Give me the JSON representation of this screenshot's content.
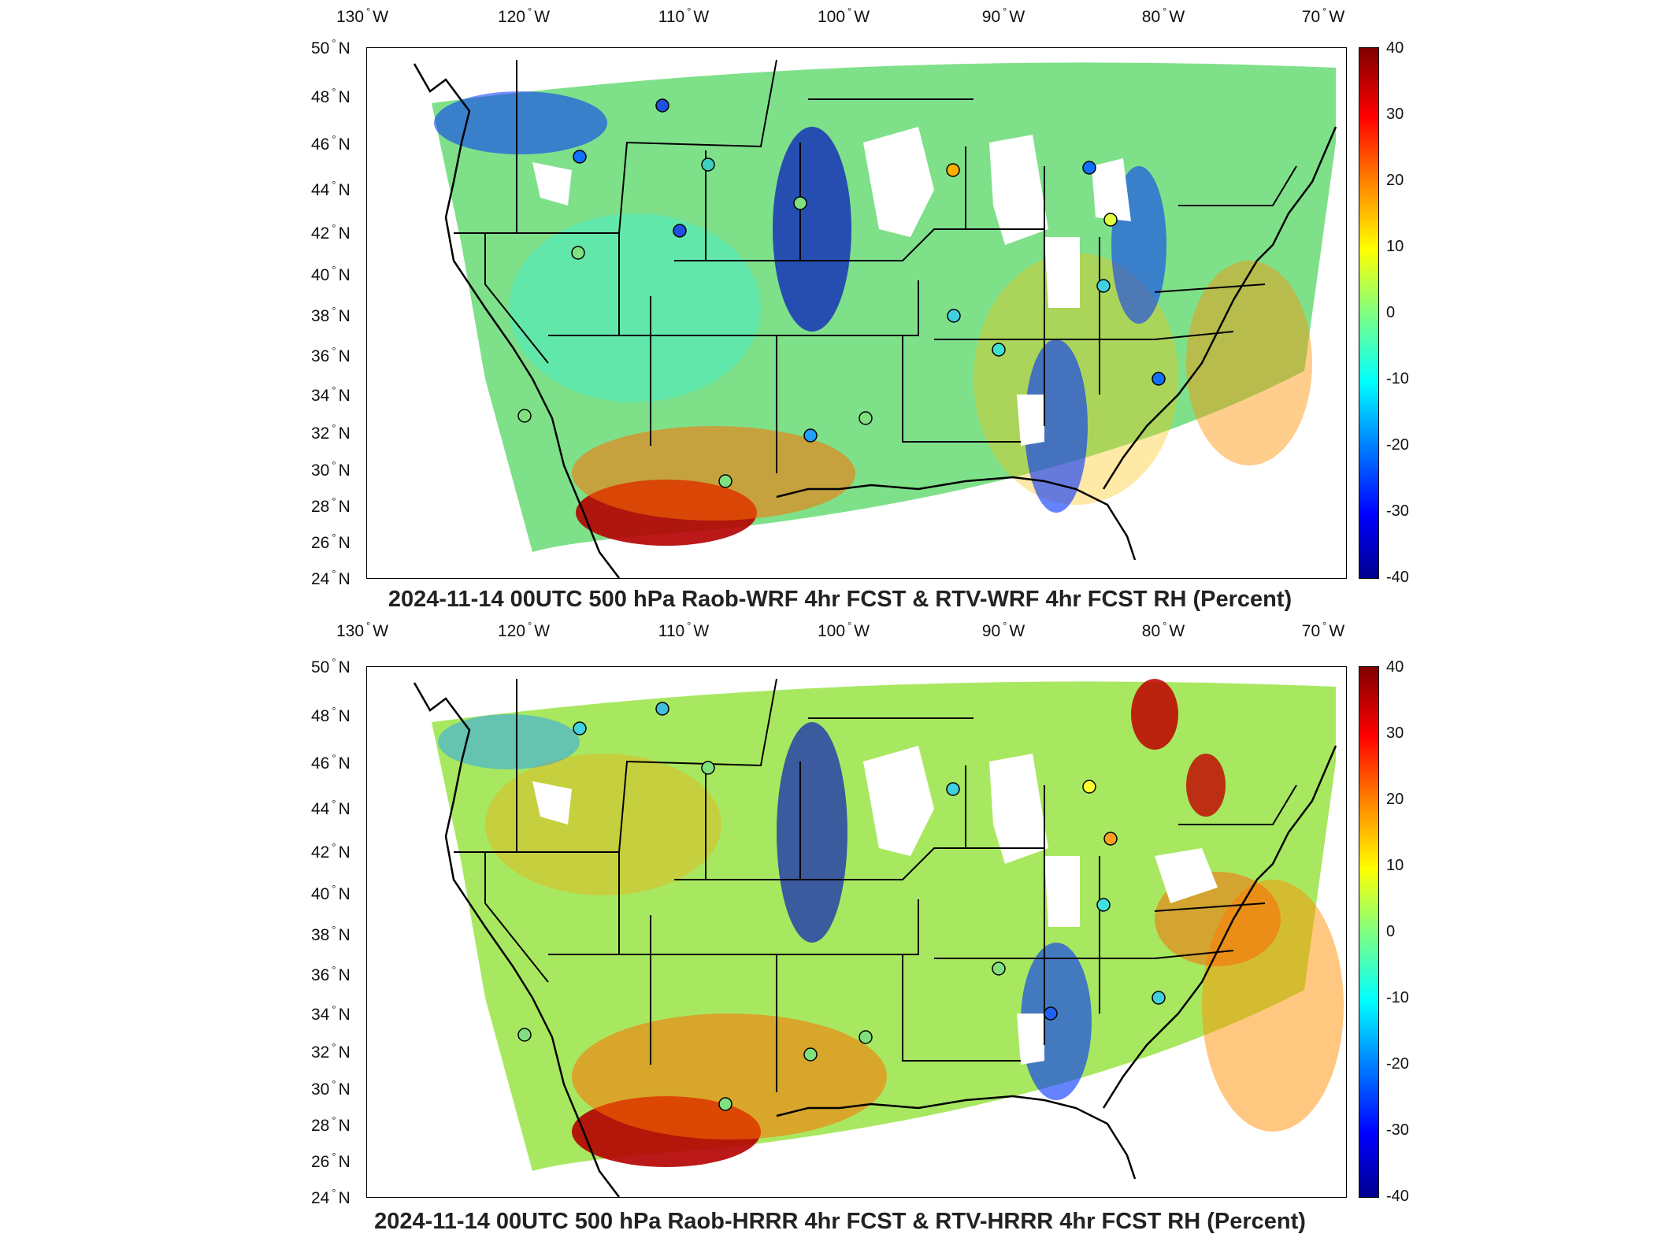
{
  "panels": [
    {
      "title": "2024-11-14 00UTC 500 hPa Raob-WRF 4hr FCST & RTV-WRF 4hr FCST RH (Percent)",
      "lon_labels": [
        "130",
        "120",
        "110",
        "100",
        "90",
        "80",
        "70"
      ],
      "lon_suffix": "W",
      "lat_labels": [
        "50",
        "48",
        "46",
        "44",
        "42",
        "40",
        "38",
        "36",
        "34",
        "32",
        "30",
        "28",
        "26",
        "24"
      ],
      "lat_suffix": "N",
      "colorbar_ticks": [
        "40",
        "30",
        "20",
        "10",
        "0",
        "-10",
        "-20",
        "-30",
        "-40"
      ]
    },
    {
      "title": "2024-11-14 00UTC 500 hPa Raob-HRRR 4hr FCST & RTV-HRRR 4hr FCST RH (Percent)",
      "lon_labels": [
        "130",
        "120",
        "110",
        "100",
        "90",
        "80",
        "70"
      ],
      "lon_suffix": "W",
      "lat_labels": [
        "50",
        "48",
        "46",
        "44",
        "42",
        "40",
        "38",
        "36",
        "34",
        "32",
        "30",
        "28",
        "26",
        "24"
      ],
      "lat_suffix": "N",
      "colorbar_ticks": [
        "40",
        "30",
        "20",
        "10",
        "0",
        "-10",
        "-20",
        "-30",
        "-40"
      ]
    }
  ],
  "degree_symbol": "°",
  "colors": {
    "background_field": "#7fe08a",
    "scale_min": "#00008f",
    "scale_mid": "#80ff80",
    "scale_max": "#800000",
    "map_lines": "#000000"
  }
}
